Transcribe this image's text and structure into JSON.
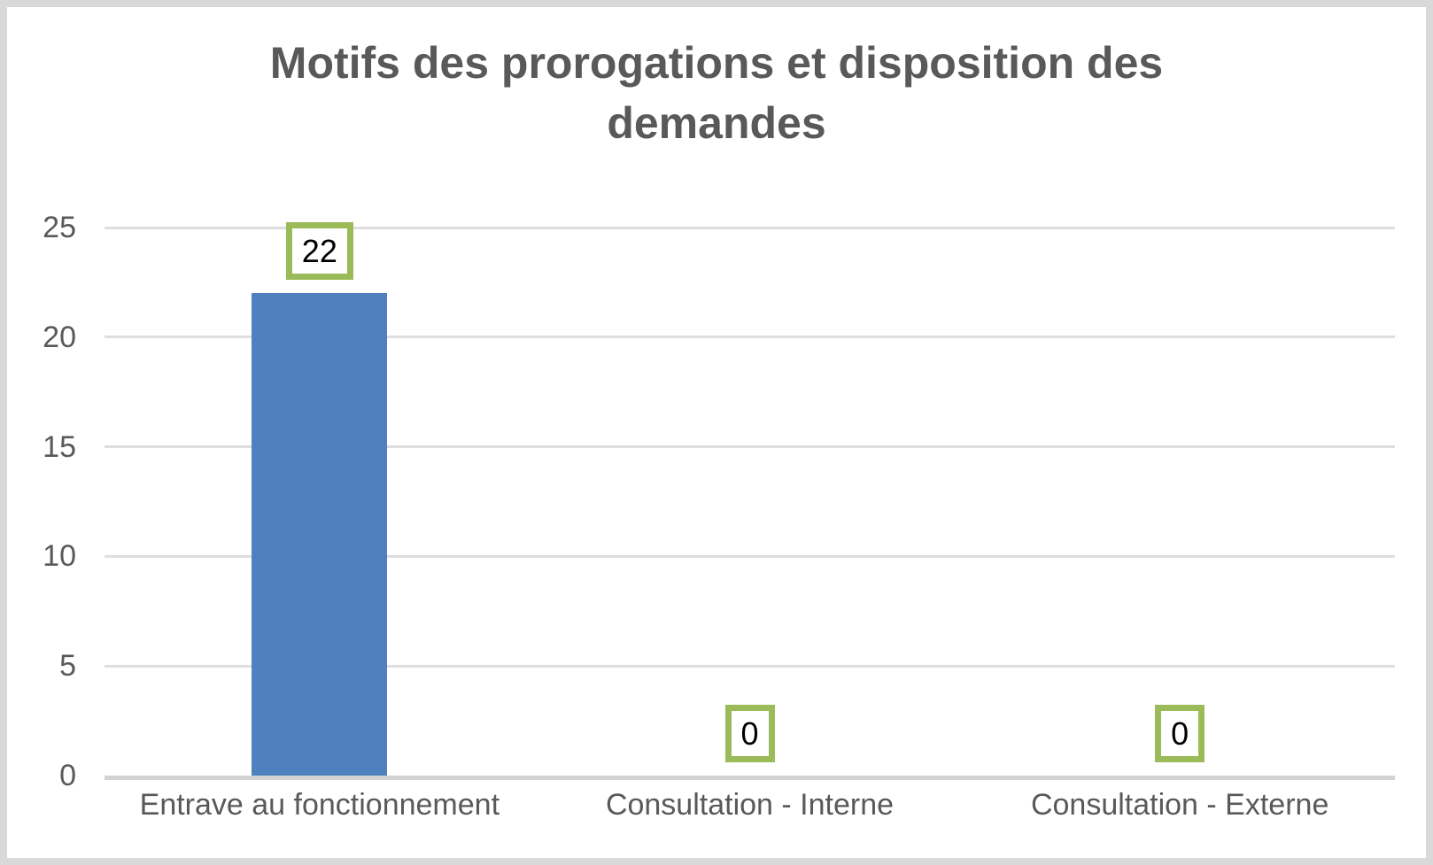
{
  "chart": {
    "colors": {
      "bar": "#4e81bd",
      "label_box_border": "#9bbb59",
      "label_box_fill": "#ffffff",
      "data_label_text": "#000000",
      "gridline": "#dedede",
      "axis_line": "#d3d3d3",
      "axis_text": "#595959",
      "title_text": "#595959",
      "frame_border": "#d9d9d9"
    }
  },
  "chart_data": {
    "type": "bar",
    "title": "Motifs des prorogations et disposition des demandes",
    "categories": [
      "Entrave au fonctionnement",
      "Consultation - Interne",
      "Consultation - Externe"
    ],
    "values": [
      22,
      0,
      0
    ],
    "data_labels": [
      "22",
      "0",
      "0"
    ],
    "xlabel": "",
    "ylabel": "",
    "ylim": [
      0,
      25
    ],
    "yticks": [
      0,
      5,
      10,
      15,
      20,
      25
    ],
    "grid": true,
    "legend_position": "none",
    "bar_count": 1,
    "series": [
      {
        "name": "",
        "values": [
          22,
          0,
          0
        ]
      }
    ]
  }
}
